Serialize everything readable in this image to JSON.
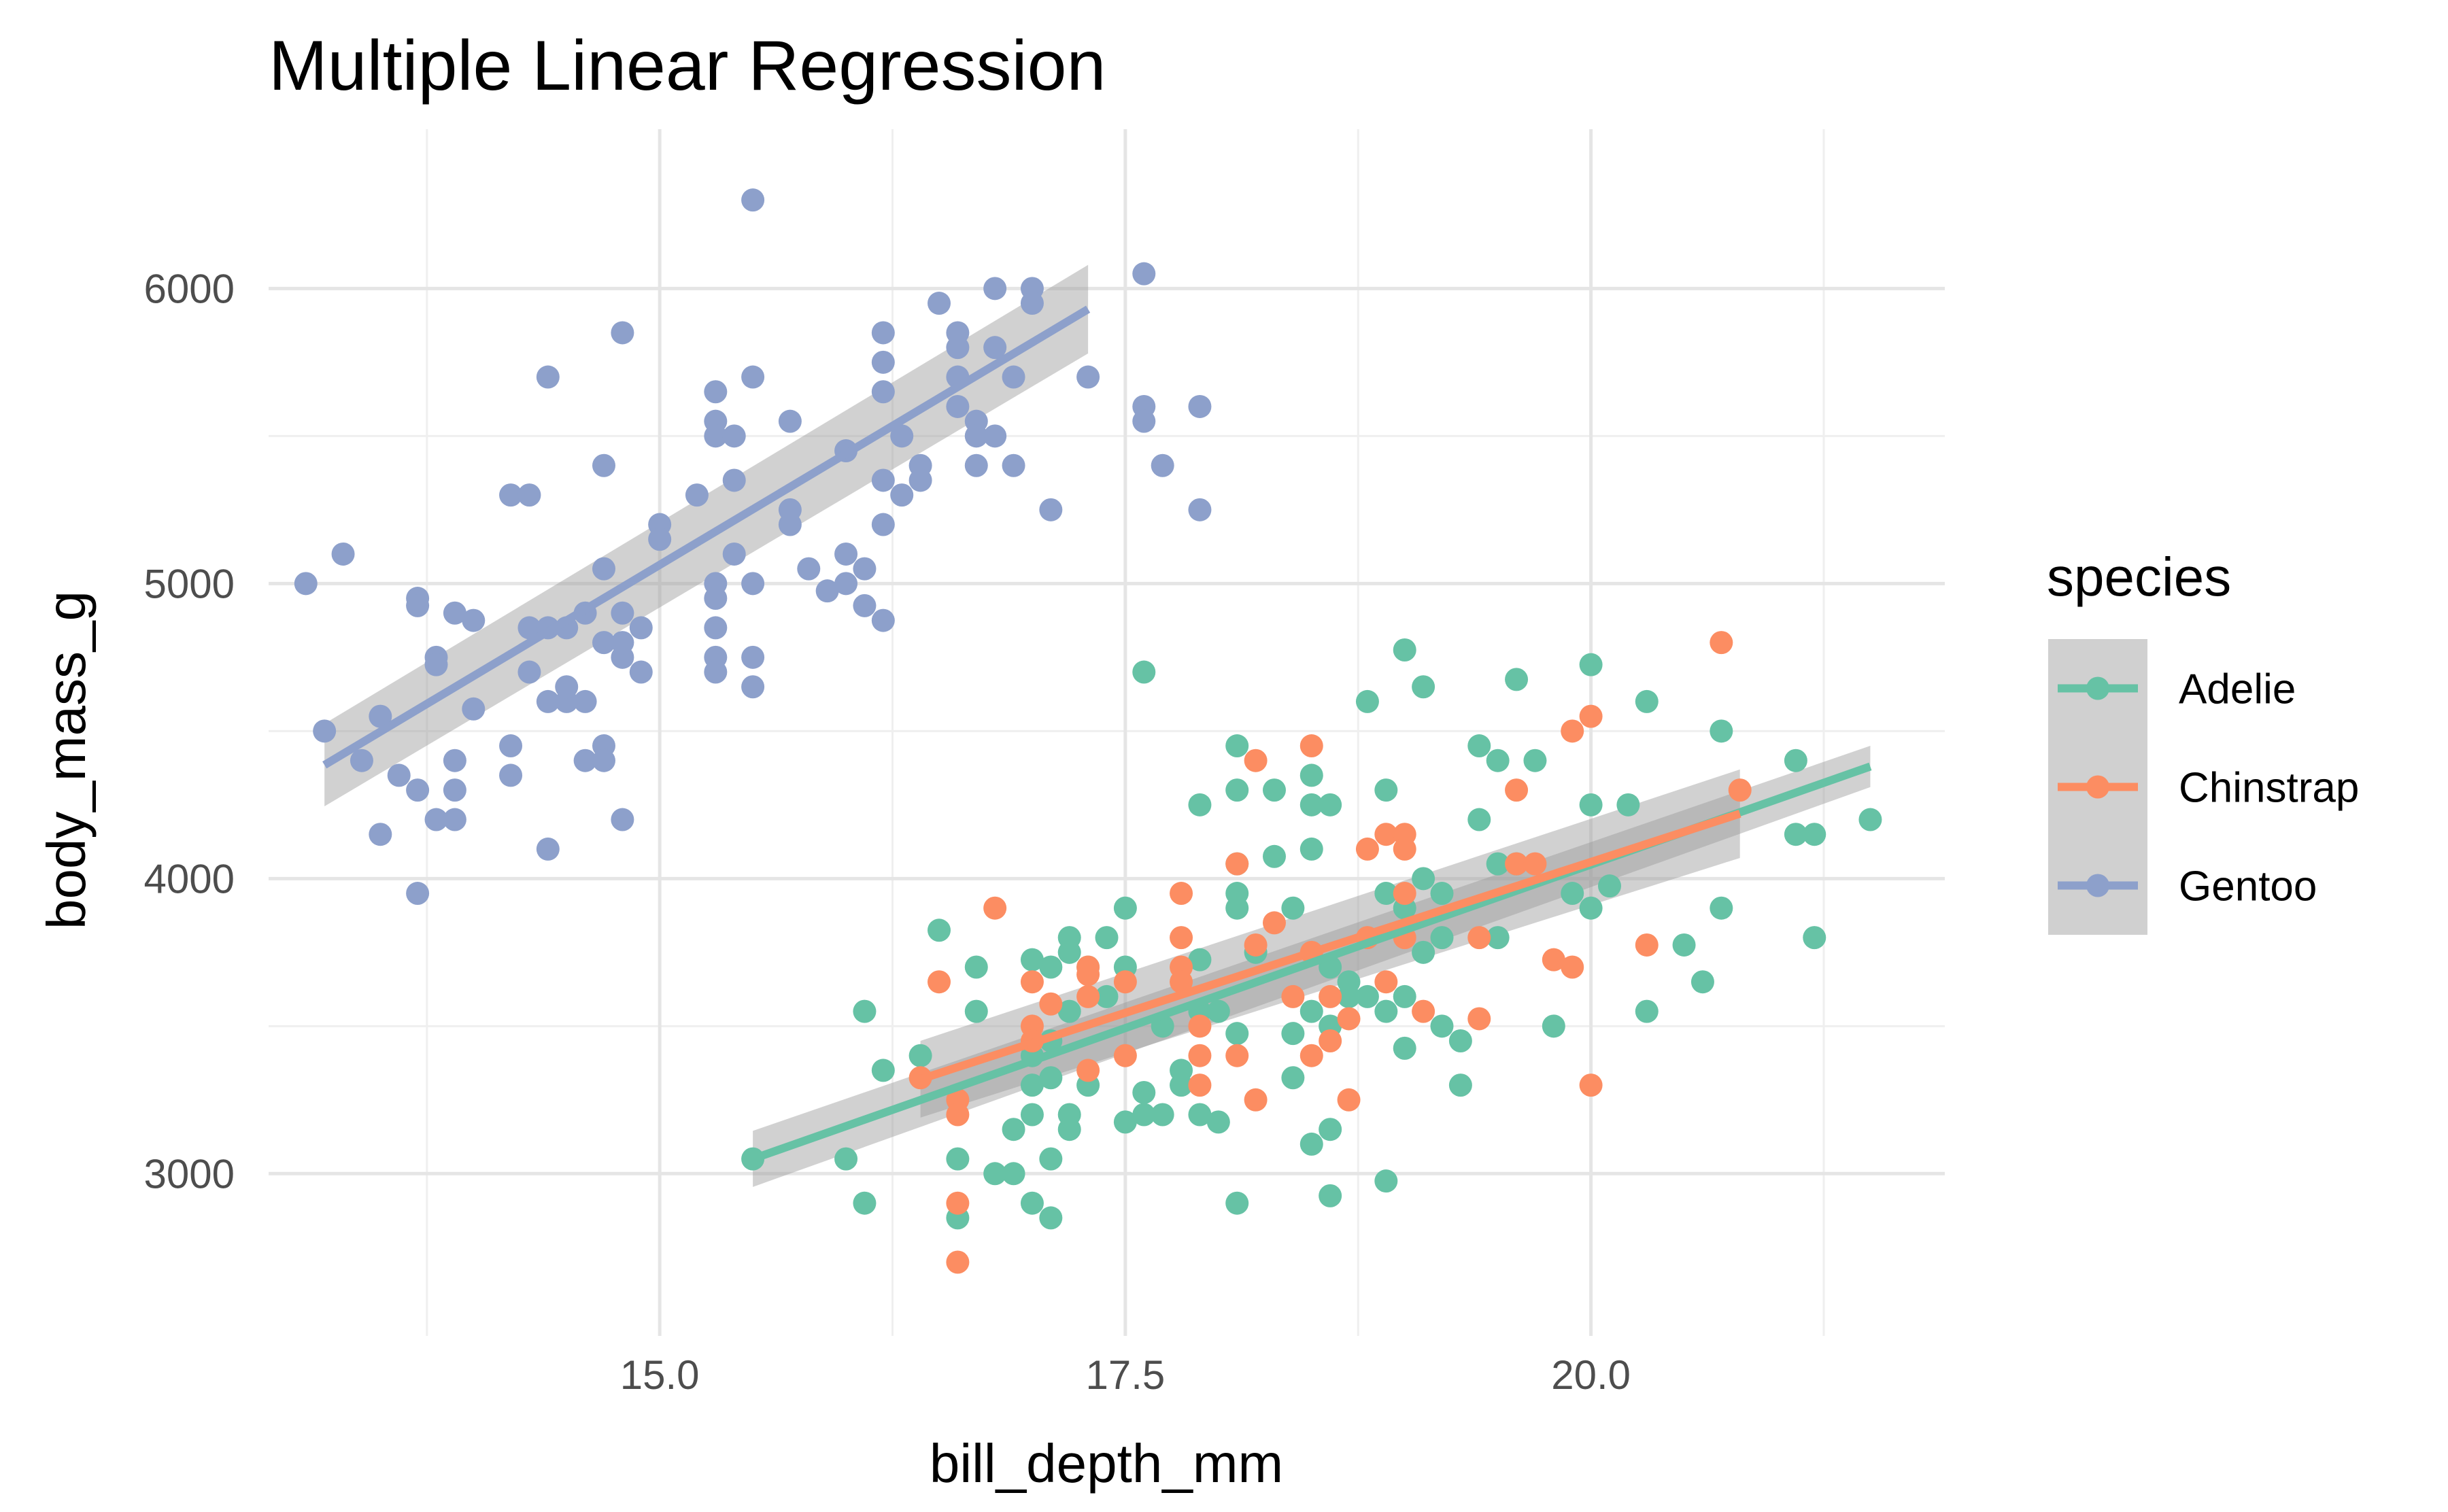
{
  "chart_data": {
    "type": "scatter",
    "title": "Multiple Linear Regression",
    "xlabel": "bill_depth_mm",
    "ylabel": "body_mass_g",
    "xlim": [
      12.9,
      21.9
    ],
    "ylim": [
      2450,
      6540
    ],
    "x_ticks": [
      15.0,
      17.5,
      20.0
    ],
    "x_tick_labels": [
      "15.0",
      "17.5",
      "20.0"
    ],
    "x_minor_ticks": [
      13.75,
      16.25,
      18.75,
      21.25
    ],
    "y_ticks": [
      3000,
      4000,
      5000,
      6000
    ],
    "y_tick_labels": [
      "3000",
      "4000",
      "5000",
      "6000"
    ],
    "y_minor_ticks": [
      3500,
      4500,
      5500
    ],
    "grid": true,
    "legend": {
      "title": "species",
      "position": "right",
      "key_background": "#d0d0d0"
    },
    "series": [
      {
        "name": "Adelie",
        "color": "#66c2a5",
        "fit": {
          "x": [
            15.5,
            21.5
          ],
          "y": [
            3050,
            4380
          ],
          "band_half_width": [
            95,
            70
          ]
        },
        "points": [
          [
            15.5,
            3050
          ],
          [
            16.0,
            3050
          ],
          [
            16.1,
            3550
          ],
          [
            16.1,
            2900
          ],
          [
            16.2,
            3350
          ],
          [
            16.4,
            3400
          ],
          [
            16.5,
            3825
          ],
          [
            16.6,
            3050
          ],
          [
            16.6,
            2850
          ],
          [
            16.7,
            3700
          ],
          [
            16.8,
            3000
          ],
          [
            16.9,
            3000
          ],
          [
            16.9,
            3150
          ],
          [
            17.0,
            3725
          ],
          [
            17.0,
            3400
          ],
          [
            17.0,
            3300
          ],
          [
            17.0,
            3200
          ],
          [
            17.0,
            2900
          ],
          [
            17.1,
            3700
          ],
          [
            17.1,
            3450
          ],
          [
            17.1,
            3050
          ],
          [
            17.1,
            3325
          ],
          [
            17.1,
            2850
          ],
          [
            17.2,
            3800
          ],
          [
            17.2,
            3150
          ],
          [
            17.2,
            3550
          ],
          [
            17.2,
            3200
          ],
          [
            17.2,
            3750
          ],
          [
            17.3,
            3700
          ],
          [
            17.3,
            3300
          ],
          [
            17.4,
            3800
          ],
          [
            17.5,
            3900
          ],
          [
            17.5,
            3700
          ],
          [
            17.5,
            3175
          ],
          [
            17.6,
            4700
          ],
          [
            17.6,
            3275
          ],
          [
            17.6,
            3200
          ],
          [
            17.7,
            3500
          ],
          [
            17.7,
            3200
          ],
          [
            17.8,
            3350
          ],
          [
            17.8,
            3300
          ],
          [
            17.9,
            3725
          ],
          [
            17.9,
            3200
          ],
          [
            17.9,
            3550
          ],
          [
            18.0,
            3550
          ],
          [
            18.0,
            3175
          ],
          [
            18.1,
            4450
          ],
          [
            18.1,
            4300
          ],
          [
            18.1,
            4050
          ],
          [
            18.1,
            3950
          ],
          [
            18.1,
            3900
          ],
          [
            18.1,
            3475
          ],
          [
            18.1,
            2900
          ],
          [
            18.2,
            3750
          ],
          [
            18.3,
            4075
          ],
          [
            18.4,
            3325
          ],
          [
            18.4,
            3900
          ],
          [
            18.4,
            3475
          ],
          [
            18.5,
            4350
          ],
          [
            18.5,
            4250
          ],
          [
            18.5,
            4100
          ],
          [
            18.5,
            3550
          ],
          [
            18.5,
            3100
          ],
          [
            18.6,
            4250
          ],
          [
            18.6,
            3700
          ],
          [
            18.6,
            3500
          ],
          [
            18.6,
            3150
          ],
          [
            18.6,
            2925
          ],
          [
            18.7,
            3650
          ],
          [
            18.7,
            3600
          ],
          [
            18.8,
            4600
          ],
          [
            18.8,
            3600
          ],
          [
            18.9,
            4300
          ],
          [
            18.9,
            3950
          ],
          [
            18.9,
            3550
          ],
          [
            18.9,
            2975
          ],
          [
            19.0,
            4775
          ],
          [
            19.0,
            3900
          ],
          [
            19.0,
            3600
          ],
          [
            19.0,
            3425
          ],
          [
            19.1,
            4650
          ],
          [
            19.1,
            4000
          ],
          [
            19.1,
            3750
          ],
          [
            19.2,
            3950
          ],
          [
            19.2,
            3800
          ],
          [
            19.2,
            3500
          ],
          [
            19.3,
            3450
          ],
          [
            19.3,
            3300
          ],
          [
            19.4,
            4450
          ],
          [
            19.4,
            4200
          ],
          [
            19.5,
            4400
          ],
          [
            19.5,
            4050
          ],
          [
            19.5,
            3800
          ],
          [
            19.6,
            4675
          ],
          [
            19.6,
            4050
          ],
          [
            19.7,
            4400
          ],
          [
            19.8,
            3500
          ],
          [
            20.0,
            4725
          ],
          [
            20.0,
            4250
          ],
          [
            20.0,
            3900
          ],
          [
            20.1,
            3975
          ],
          [
            20.2,
            4250
          ],
          [
            20.3,
            4600
          ],
          [
            20.3,
            3550
          ],
          [
            20.5,
            3775
          ],
          [
            20.6,
            3650
          ],
          [
            20.7,
            4500
          ],
          [
            20.7,
            3900
          ],
          [
            21.1,
            4400
          ],
          [
            21.1,
            4150
          ],
          [
            21.2,
            3800
          ],
          [
            21.2,
            4150
          ],
          [
            21.5,
            4200
          ],
          [
            17.9,
            4250
          ],
          [
            18.3,
            4300
          ],
          [
            19.9,
            3950
          ],
          [
            16.7,
            3550
          ],
          [
            17.4,
            3600
          ]
        ]
      },
      {
        "name": "Chinstrap",
        "color": "#fc8d62",
        "fit": {
          "x": [
            16.4,
            20.8
          ],
          "y": [
            3320,
            4220
          ],
          "band_half_width": [
            130,
            150
          ]
        },
        "points": [
          [
            16.4,
            3325
          ],
          [
            16.5,
            3650
          ],
          [
            16.6,
            3250
          ],
          [
            16.6,
            3200
          ],
          [
            16.6,
            2900
          ],
          [
            16.6,
            2700
          ],
          [
            16.8,
            3900
          ],
          [
            17.0,
            3650
          ],
          [
            17.0,
            3500
          ],
          [
            17.0,
            3450
          ],
          [
            17.1,
            3575
          ],
          [
            17.3,
            3700
          ],
          [
            17.3,
            3675
          ],
          [
            17.3,
            3600
          ],
          [
            17.3,
            3350
          ],
          [
            17.5,
            3650
          ],
          [
            17.5,
            3400
          ],
          [
            17.8,
            3950
          ],
          [
            17.8,
            3800
          ],
          [
            17.8,
            3700
          ],
          [
            17.8,
            3650
          ],
          [
            17.9,
            3500
          ],
          [
            17.9,
            3400
          ],
          [
            17.9,
            3300
          ],
          [
            18.1,
            4050
          ],
          [
            18.1,
            3400
          ],
          [
            18.2,
            4400
          ],
          [
            18.2,
            3775
          ],
          [
            18.2,
            3250
          ],
          [
            18.3,
            3850
          ],
          [
            18.5,
            4450
          ],
          [
            18.5,
            3750
          ],
          [
            18.5,
            3400
          ],
          [
            18.6,
            3600
          ],
          [
            18.6,
            3450
          ],
          [
            18.7,
            3525
          ],
          [
            18.7,
            3250
          ],
          [
            18.8,
            4100
          ],
          [
            18.8,
            3800
          ],
          [
            18.9,
            4150
          ],
          [
            19.0,
            4150
          ],
          [
            19.0,
            4100
          ],
          [
            19.0,
            3950
          ],
          [
            19.0,
            3800
          ],
          [
            19.1,
            3550
          ],
          [
            19.4,
            3525
          ],
          [
            19.4,
            3800
          ],
          [
            19.6,
            4300
          ],
          [
            19.6,
            4050
          ],
          [
            19.7,
            4050
          ],
          [
            19.8,
            3725
          ],
          [
            19.9,
            3700
          ],
          [
            19.9,
            4500
          ],
          [
            20.0,
            4550
          ],
          [
            20.0,
            3300
          ],
          [
            20.3,
            3775
          ],
          [
            20.7,
            4800
          ],
          [
            20.8,
            4300
          ],
          [
            18.4,
            3600
          ],
          [
            18.9,
            3650
          ]
        ]
      },
      {
        "name": "Gentoo",
        "color": "#8da0cb",
        "fit": {
          "x": [
            13.2,
            17.3
          ],
          "y": [
            4385,
            5930
          ],
          "band_half_width": [
            140,
            150
          ]
        },
        "points": [
          [
            13.1,
            5000
          ],
          [
            13.2,
            4500
          ],
          [
            13.3,
            5100
          ],
          [
            13.4,
            4400
          ],
          [
            13.5,
            4550
          ],
          [
            13.5,
            4150
          ],
          [
            13.6,
            4350
          ],
          [
            13.7,
            4950
          ],
          [
            13.7,
            4925
          ],
          [
            13.7,
            4300
          ],
          [
            13.7,
            3950
          ],
          [
            13.8,
            4750
          ],
          [
            13.8,
            4725
          ],
          [
            13.8,
            4200
          ],
          [
            13.9,
            4900
          ],
          [
            13.9,
            4400
          ],
          [
            13.9,
            4300
          ],
          [
            13.9,
            4200
          ],
          [
            14.0,
            4875
          ],
          [
            14.0,
            4575
          ],
          [
            14.2,
            5300
          ],
          [
            14.2,
            4450
          ],
          [
            14.2,
            4350
          ],
          [
            14.3,
            5300
          ],
          [
            14.3,
            4850
          ],
          [
            14.3,
            4700
          ],
          [
            14.4,
            5700
          ],
          [
            14.4,
            4850
          ],
          [
            14.4,
            4600
          ],
          [
            14.4,
            4100
          ],
          [
            14.5,
            4850
          ],
          [
            14.5,
            4600
          ],
          [
            14.5,
            4650
          ],
          [
            14.6,
            4900
          ],
          [
            14.6,
            4600
          ],
          [
            14.6,
            4400
          ],
          [
            14.7,
            5400
          ],
          [
            14.7,
            5050
          ],
          [
            14.7,
            4800
          ],
          [
            14.7,
            4450
          ],
          [
            14.7,
            4400
          ],
          [
            14.8,
            5850
          ],
          [
            14.8,
            4900
          ],
          [
            14.8,
            4750
          ],
          [
            14.8,
            4800
          ],
          [
            14.8,
            4200
          ],
          [
            14.9,
            4850
          ],
          [
            14.9,
            4700
          ],
          [
            15.0,
            5200
          ],
          [
            15.0,
            5150
          ],
          [
            15.2,
            5300
          ],
          [
            15.3,
            5650
          ],
          [
            15.3,
            5550
          ],
          [
            15.3,
            5500
          ],
          [
            15.3,
            5000
          ],
          [
            15.3,
            4950
          ],
          [
            15.3,
            4850
          ],
          [
            15.3,
            4750
          ],
          [
            15.3,
            4700
          ],
          [
            15.4,
            5500
          ],
          [
            15.4,
            5350
          ],
          [
            15.4,
            5100
          ],
          [
            15.5,
            5700
          ],
          [
            15.5,
            5000
          ],
          [
            15.5,
            4750
          ],
          [
            15.5,
            4650
          ],
          [
            15.5,
            6300
          ],
          [
            15.7,
            5550
          ],
          [
            15.7,
            5250
          ],
          [
            15.7,
            5200
          ],
          [
            15.8,
            5050
          ],
          [
            15.9,
            4975
          ],
          [
            16.0,
            5450
          ],
          [
            16.0,
            5100
          ],
          [
            16.0,
            5000
          ],
          [
            16.1,
            5050
          ],
          [
            16.1,
            4925
          ],
          [
            16.2,
            5850
          ],
          [
            16.2,
            5750
          ],
          [
            16.2,
            5650
          ],
          [
            16.2,
            5350
          ],
          [
            16.2,
            5200
          ],
          [
            16.2,
            4875
          ],
          [
            16.3,
            5500
          ],
          [
            16.3,
            5300
          ],
          [
            16.4,
            5400
          ],
          [
            16.4,
            5350
          ],
          [
            16.5,
            5950
          ],
          [
            16.6,
            5850
          ],
          [
            16.6,
            5800
          ],
          [
            16.6,
            5700
          ],
          [
            16.6,
            5600
          ],
          [
            16.7,
            5550
          ],
          [
            16.7,
            5500
          ],
          [
            16.7,
            5400
          ],
          [
            16.8,
            6000
          ],
          [
            16.8,
            5800
          ],
          [
            16.8,
            5500
          ],
          [
            16.9,
            5700
          ],
          [
            16.9,
            5400
          ],
          [
            17.0,
            6000
          ],
          [
            17.0,
            5950
          ],
          [
            17.1,
            5250
          ],
          [
            17.3,
            5700
          ],
          [
            17.6,
            6050
          ],
          [
            17.6,
            5600
          ],
          [
            17.6,
            5550
          ],
          [
            17.7,
            5400
          ],
          [
            17.9,
            5600
          ],
          [
            17.9,
            5250
          ]
        ]
      }
    ]
  }
}
